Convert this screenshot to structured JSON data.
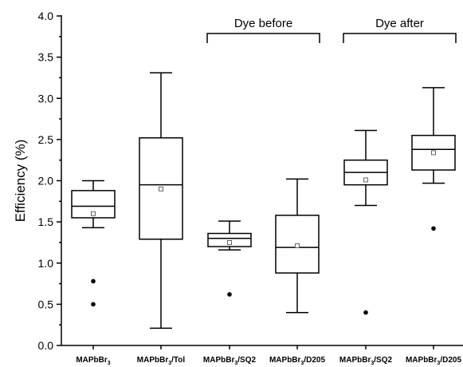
{
  "chart_data": {
    "type": "box",
    "ylabel": "Efficiency (%)",
    "ylim": [
      0.0,
      4.0
    ],
    "yticks": [
      "0.0",
      "0.5",
      "1.0",
      "1.5",
      "2.0",
      "2.5",
      "3.0",
      "3.5",
      "4.0"
    ],
    "categories": [
      {
        "base": "MAPbBr",
        "sub": "3",
        "suffix": ""
      },
      {
        "base": "MAPbBr",
        "sub": "3",
        "suffix": "/Tol"
      },
      {
        "base": "MAPbBr",
        "sub": "3",
        "suffix": "/SQ2"
      },
      {
        "base": "MAPbBr",
        "sub": "3",
        "suffix": "/D205"
      },
      {
        "base": "MAPbBr",
        "sub": "3",
        "suffix": "/SQ2"
      },
      {
        "base": "MAPbBr",
        "sub": "3",
        "suffix": "/D205"
      }
    ],
    "boxes": [
      {
        "whisker_low": 1.43,
        "q1": 1.55,
        "median": 1.69,
        "q3": 1.88,
        "whisker_high": 2.0,
        "mean": 1.6,
        "outliers": [
          0.78,
          0.5
        ]
      },
      {
        "whisker_low": 0.21,
        "q1": 1.29,
        "median": 1.95,
        "q3": 2.52,
        "whisker_high": 3.31,
        "mean": 1.9,
        "outliers": []
      },
      {
        "whisker_low": 1.16,
        "q1": 1.2,
        "median": 1.3,
        "q3": 1.36,
        "whisker_high": 1.51,
        "mean": 1.25,
        "outliers": [
          0.62
        ]
      },
      {
        "whisker_low": 0.4,
        "q1": 0.88,
        "median": 1.19,
        "q3": 1.58,
        "whisker_high": 2.02,
        "mean": 1.21,
        "outliers": []
      },
      {
        "whisker_low": 1.7,
        "q1": 1.95,
        "median": 2.1,
        "q3": 2.25,
        "whisker_high": 2.61,
        "mean": 2.01,
        "outliers": [
          0.4
        ]
      },
      {
        "whisker_low": 1.97,
        "q1": 2.13,
        "median": 2.38,
        "q3": 2.55,
        "whisker_high": 3.13,
        "mean": 2.34,
        "outliers": [
          1.42
        ]
      }
    ],
    "annotations": [
      {
        "text": "Dye before",
        "from_category": 2,
        "to_category": 3
      },
      {
        "text": "Dye after",
        "from_category": 4,
        "to_category": 5
      }
    ]
  }
}
